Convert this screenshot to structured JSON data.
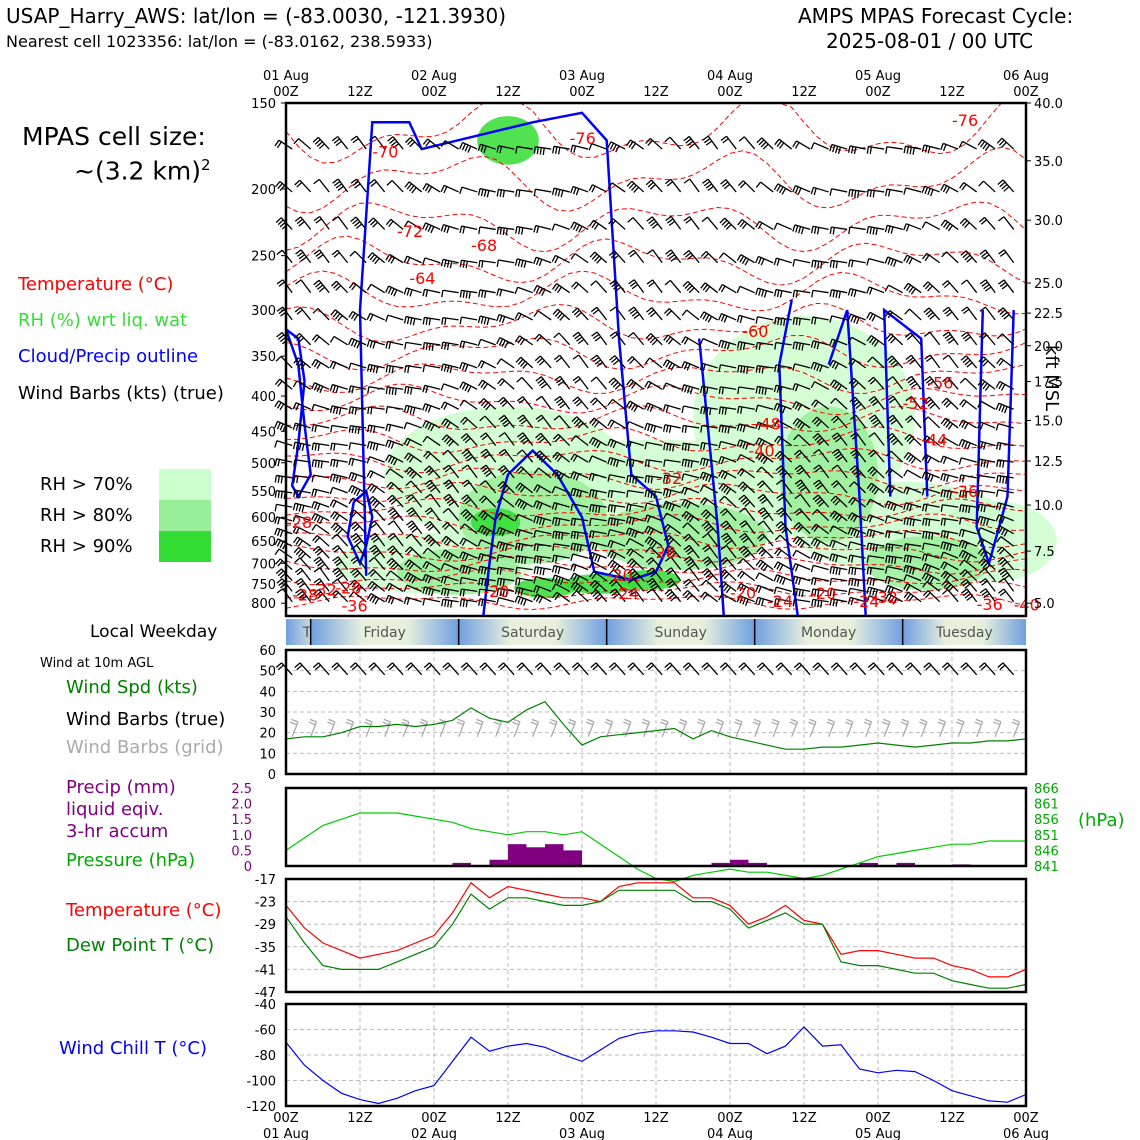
{
  "header": {
    "title_left": "USAP_Harry_AWS: lat/lon = (-83.0030, -121.3930)",
    "subtitle_left": "Nearest cell 1023356: lat/lon = (-83.0162, 238.5933)",
    "title_right_1": "AMPS MPAS Forecast Cycle:",
    "title_right_2": "2025-08-01 / 00 UTC"
  },
  "cell_size": {
    "label": "MPAS cell size:",
    "value": "~(3.2 km)",
    "sup": "2"
  },
  "legend": {
    "temperature": "Temperature (°C)",
    "rh": "RH (%) wrt liq. wat",
    "cloud": "Cloud/Precip outline",
    "wind": "Wind Barbs (kts) (true)",
    "rh70": "RH > 70%",
    "rh80": "RH > 80%",
    "rh90": "RH > 90%"
  },
  "colors": {
    "temperature": "#ff0000",
    "rh_text": "#33dd33",
    "cloud": "#0000ff",
    "rh70": "#ccffcc",
    "rh80": "#99ee99",
    "rh90": "#33dd33",
    "precip": "#800080",
    "pressure": "#00aa00",
    "windspd": "#008000",
    "windchill": "#0000ff",
    "grid_barb": "#aaaaaa"
  },
  "time_axis": {
    "day_ticks": [
      {
        "top": "01 Aug",
        "bottom": "00Z"
      },
      {
        "top": "",
        "bottom": "12Z"
      },
      {
        "top": "02 Aug",
        "bottom": "00Z"
      },
      {
        "top": "",
        "bottom": "12Z"
      },
      {
        "top": "03 Aug",
        "bottom": "00Z"
      },
      {
        "top": "",
        "bottom": "12Z"
      },
      {
        "top": "04 Aug",
        "bottom": "00Z"
      },
      {
        "top": "",
        "bottom": "12Z"
      },
      {
        "top": "05 Aug",
        "bottom": "00Z"
      },
      {
        "top": "",
        "bottom": "12Z"
      },
      {
        "top": "06 Aug",
        "bottom": "00Z"
      }
    ]
  },
  "weekday": {
    "label": "Local Weekday",
    "days": [
      "Thursday",
      "Friday",
      "Saturday",
      "Sunday",
      "Monday",
      "Tuesday"
    ]
  },
  "chart_data": [
    {
      "type": "heatmap",
      "title": "Vertical cross-section (time-height)",
      "yaxis_left_label": "",
      "pressure_ticks": [
        150,
        200,
        250,
        300,
        350,
        400,
        450,
        500,
        550,
        600,
        650,
        700,
        750,
        800
      ],
      "ylabel_right": "kft MSL",
      "height_ticks": [
        "40.0",
        "35.0",
        "30.0",
        "25.0",
        "22.5",
        "20.0",
        "17.5",
        "15.0",
        "12.5",
        "10.0",
        "7.5",
        "5.0"
      ],
      "height_tick_pressures": [
        150,
        182,
        222,
        274,
        303,
        338,
        381,
        434,
        497,
        576,
        672,
        800
      ],
      "temperature_labels": [
        {
          "hour": 14,
          "p": 180,
          "v": "-70"
        },
        {
          "hour": 46,
          "p": 172,
          "v": "-76"
        },
        {
          "hour": 18,
          "p": 235,
          "v": "-72"
        },
        {
          "hour": 30,
          "p": 246,
          "v": "-68"
        },
        {
          "hour": 20,
          "p": 275,
          "v": "-64"
        },
        {
          "hour": 74,
          "p": 328,
          "v": "-60"
        },
        {
          "hour": 108,
          "p": 162,
          "v": "-76"
        },
        {
          "hour": 104,
          "p": 390,
          "v": "-56"
        },
        {
          "hour": 100,
          "p": 418,
          "v": "-52"
        },
        {
          "hour": 76,
          "p": 447,
          "v": "-48"
        },
        {
          "hour": 103,
          "p": 472,
          "v": "-44"
        },
        {
          "hour": 75,
          "p": 490,
          "v": "-40"
        },
        {
          "hour": 108,
          "p": 561,
          "v": "-36"
        },
        {
          "hour": 60,
          "p": 537,
          "v": "-32"
        },
        {
          "hour": 59,
          "p": 688,
          "v": "-28"
        },
        {
          "hour": 52,
          "p": 741,
          "v": "-20"
        },
        {
          "hour": 53,
          "p": 789,
          "v": "-24"
        },
        {
          "hour": 72,
          "p": 788,
          "v": "-20"
        },
        {
          "hour": 78,
          "p": 810,
          "v": "-24"
        },
        {
          "hour": 85,
          "p": 789,
          "v": "-20"
        },
        {
          "hour": 92,
          "p": 810,
          "v": "-24"
        },
        {
          "hour": 95,
          "p": 800,
          "v": "-32"
        },
        {
          "hour": 0,
          "p": 622,
          "v": "-28"
        },
        {
          "hour": 1,
          "p": 793,
          "v": "-28"
        },
        {
          "hour": 4,
          "p": 780,
          "v": "-32"
        },
        {
          "hour": 8,
          "p": 775,
          "v": "-28"
        },
        {
          "hour": 9,
          "p": 822,
          "v": "-36"
        },
        {
          "hour": 32,
          "p": 783,
          "v": "-20"
        },
        {
          "hour": 112,
          "p": 818,
          "v": "-36"
        },
        {
          "hour": 118,
          "p": 820,
          "v": "-40"
        }
      ]
    },
    {
      "type": "line",
      "title": "Wind Spd (kts)",
      "xlabel": "",
      "ylabel": "",
      "ylim": [
        0,
        60
      ],
      "yticks": [
        0,
        10,
        20,
        30,
        40,
        50,
        60
      ],
      "series": [
        {
          "name": "Wind Spd (kts)",
          "x": [
            0,
            3,
            6,
            9,
            12,
            15,
            18,
            21,
            24,
            27,
            30,
            33,
            36,
            39,
            42,
            45,
            48,
            51,
            54,
            57,
            60,
            63,
            66,
            69,
            72,
            75,
            78,
            81,
            84,
            87,
            90,
            93,
            96,
            99,
            102,
            105,
            108,
            111,
            114,
            117,
            120
          ],
          "values": [
            17,
            18,
            18,
            20,
            23,
            23,
            24,
            23,
            24,
            26,
            32,
            27,
            25,
            31,
            35,
            24,
            14,
            18,
            19,
            20,
            21,
            22,
            17,
            21,
            18,
            16,
            14,
            12,
            12,
            13,
            13,
            14,
            15,
            14,
            13,
            14,
            15,
            15,
            16,
            16,
            17
          ]
        }
      ],
      "labels": {
        "barbs_true": "Wind Barbs (true)",
        "barbs_grid": "Wind Barbs (grid)",
        "title": "Wind at 10m AGL"
      }
    },
    {
      "type": "bar",
      "title": "Precip (mm) liquid eqiv. 3-hr accum",
      "precip_label_1": "Precip (mm)",
      "precip_label_2": "liquid eqiv.",
      "precip_label_3": "3-hr accum",
      "pressure_label": "Pressure (hPa)",
      "ylim_precip": [
        0,
        2.5
      ],
      "yticks_precip": [
        "0",
        "0.5",
        "1.0",
        "1.5",
        "2.0",
        "2.5"
      ],
      "ylim_pressure": [
        841,
        866
      ],
      "yticks_pressure": [
        "841",
        "846",
        "851",
        "856",
        "861",
        "866"
      ],
      "ylabel_right": "(hPa)",
      "precip_bars": [
        {
          "hour": 27,
          "v": 0.1
        },
        {
          "hour": 33,
          "v": 0.2
        },
        {
          "hour": 36,
          "v": 0.7
        },
        {
          "hour": 39,
          "v": 0.6
        },
        {
          "hour": 42,
          "v": 0.7
        },
        {
          "hour": 45,
          "v": 0.5
        },
        {
          "hour": 69,
          "v": 0.1
        },
        {
          "hour": 72,
          "v": 0.2
        },
        {
          "hour": 75,
          "v": 0.1
        },
        {
          "hour": 93,
          "v": 0.1
        },
        {
          "hour": 99,
          "v": 0.1
        },
        {
          "hour": 108,
          "v": 0.05
        }
      ],
      "pressure_series": {
        "name": "Pressure (hPa)",
        "x": [
          0,
          3,
          6,
          9,
          12,
          15,
          18,
          21,
          24,
          27,
          30,
          33,
          36,
          39,
          42,
          45,
          48,
          51,
          54,
          57,
          60,
          63,
          66,
          69,
          72,
          75,
          78,
          81,
          84,
          87,
          90,
          93,
          96,
          99,
          102,
          105,
          108,
          111,
          114,
          117,
          120
        ],
        "values": [
          846,
          850,
          854,
          856,
          858,
          858,
          858,
          857,
          856,
          855,
          853,
          852,
          851,
          852,
          852,
          851,
          852,
          848,
          844,
          840,
          837,
          836,
          838,
          839,
          840,
          839,
          839,
          838,
          837,
          838,
          840,
          842,
          844,
          845,
          846,
          847,
          848,
          848,
          849,
          849,
          849
        ]
      }
    },
    {
      "type": "line",
      "title": "Temperature / Dew Point",
      "ylim": [
        -47,
        -17
      ],
      "yticks": [
        -17,
        -23,
        -29,
        -35,
        -41,
        -47
      ],
      "series": [
        {
          "name": "Temperature (°C)",
          "x": [
            0,
            3,
            6,
            9,
            12,
            15,
            18,
            21,
            24,
            27,
            30,
            33,
            36,
            39,
            42,
            45,
            48,
            51,
            54,
            57,
            60,
            63,
            66,
            69,
            72,
            75,
            78,
            81,
            84,
            87,
            90,
            93,
            96,
            99,
            102,
            105,
            108,
            111,
            114,
            117,
            120
          ],
          "values": [
            -24,
            -30,
            -34,
            -36,
            -38,
            -37,
            -36,
            -34,
            -32,
            -26,
            -18,
            -22,
            -19,
            -20,
            -21,
            -22,
            -22,
            -23,
            -19,
            -18,
            -18,
            -18,
            -22,
            -22,
            -24,
            -29,
            -27,
            -24,
            -28,
            -29,
            -37,
            -36,
            -36,
            -37,
            -38,
            -38,
            -40,
            -41,
            -43,
            -43,
            -41
          ]
        },
        {
          "name": "Dew Point T (°C)",
          "x": [
            0,
            3,
            6,
            9,
            12,
            15,
            18,
            21,
            24,
            27,
            30,
            33,
            36,
            39,
            42,
            45,
            48,
            51,
            54,
            57,
            60,
            63,
            66,
            69,
            72,
            75,
            78,
            81,
            84,
            87,
            90,
            93,
            96,
            99,
            102,
            105,
            108,
            111,
            114,
            117,
            120
          ],
          "values": [
            -27,
            -34,
            -40,
            -41,
            -41,
            -41,
            -39,
            -37,
            -35,
            -29,
            -21,
            -25,
            -22,
            -22,
            -23,
            -24,
            -24,
            -23,
            -20,
            -20,
            -20,
            -20,
            -23,
            -23,
            -25,
            -30,
            -28,
            -26,
            -29,
            -29,
            -39,
            -40,
            -40,
            -41,
            -42,
            -42,
            -44,
            -45,
            -46,
            -46,
            -45
          ]
        }
      ]
    },
    {
      "type": "line",
      "title": "Wind Chill T (°C)",
      "ylim": [
        -120,
        -40
      ],
      "yticks": [
        -40,
        -60,
        -80,
        -100,
        -120
      ],
      "series": [
        {
          "name": "Wind Chill T (°C)",
          "x": [
            0,
            3,
            6,
            9,
            12,
            15,
            18,
            21,
            24,
            27,
            30,
            33,
            36,
            39,
            42,
            45,
            48,
            51,
            54,
            57,
            60,
            63,
            66,
            69,
            72,
            75,
            78,
            81,
            84,
            87,
            90,
            93,
            96,
            99,
            102,
            105,
            108,
            111,
            114,
            117,
            120
          ],
          "values": [
            -70,
            -88,
            -100,
            -110,
            -115,
            -118,
            -114,
            -108,
            -104,
            -85,
            -66,
            -77,
            -73,
            -71,
            -74,
            -80,
            -85,
            -76,
            -67,
            -63,
            -61,
            -61,
            -62,
            -66,
            -71,
            -71,
            -79,
            -73,
            -58,
            -73,
            -72,
            -91,
            -94,
            -92,
            -93,
            -100,
            -108,
            -112,
            -116,
            -117,
            -111
          ]
        }
      ]
    }
  ]
}
